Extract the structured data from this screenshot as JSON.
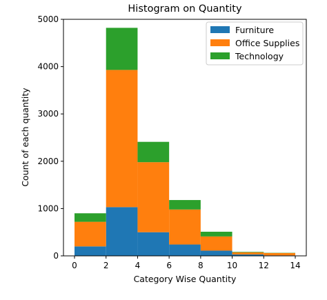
{
  "chart_data": {
    "type": "bar",
    "subtype": "stacked-histogram",
    "title": "Histogram on Quantity",
    "xlabel": "Category Wise Quantity",
    "ylabel": "Count of each quantity",
    "bin_edges": [
      0,
      2,
      4,
      6,
      8,
      10,
      12,
      14
    ],
    "xlim": [
      -0.7,
      14.7
    ],
    "ylim": [
      0,
      5000
    ],
    "xticks": [
      0,
      2,
      4,
      6,
      8,
      10,
      12,
      14
    ],
    "yticks": [
      0,
      1000,
      2000,
      3000,
      4000,
      5000
    ],
    "grid": false,
    "legend": "top-right",
    "series": [
      {
        "name": "Furniture",
        "color": "#1f77b4",
        "values": [
          200,
          1030,
          500,
          240,
          110,
          30,
          10
        ]
      },
      {
        "name": "Office Supplies",
        "color": "#ff7f0e",
        "values": [
          520,
          2900,
          1480,
          740,
          300,
          45,
          50
        ]
      },
      {
        "name": "Technology",
        "color": "#2ca02c",
        "values": [
          180,
          890,
          430,
          200,
          100,
          10,
          5
        ]
      }
    ]
  }
}
